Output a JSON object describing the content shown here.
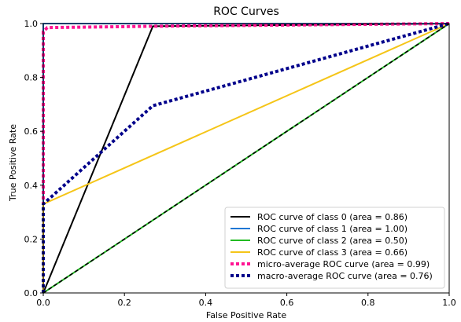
{
  "chart_data": {
    "type": "line",
    "title": "ROC Curves",
    "xlabel": "False Positive Rate",
    "ylabel": "True Positive Rate",
    "xlim": [
      0.0,
      1.0
    ],
    "ylim": [
      0.0,
      1.0
    ],
    "grid": false,
    "legend_position": "lower-right",
    "xticks": [
      "0.0",
      "0.2",
      "0.4",
      "0.6",
      "0.8",
      "1.0"
    ],
    "yticks": [
      "0.0",
      "0.2",
      "0.4",
      "0.6",
      "0.8",
      "1.0"
    ],
    "series": [
      {
        "name": "ROC curve of class 0 (area = 0.86)",
        "color": "#000000",
        "style": "solid",
        "x": [
          0.0,
          0.27,
          1.0
        ],
        "y": [
          0.0,
          0.99,
          1.0
        ]
      },
      {
        "name": "ROC curve of class 1 (area = 1.00)",
        "color": "#1f77d4",
        "style": "solid",
        "x": [
          0.0,
          0.0,
          1.0
        ],
        "y": [
          0.0,
          1.0,
          1.0
        ]
      },
      {
        "name": "ROC curve of class 2 (area = 0.50)",
        "color": "#22bb22",
        "style": "solid",
        "x": [
          0.0,
          1.0
        ],
        "y": [
          0.0,
          1.0
        ]
      },
      {
        "name": "ROC curve of class 3 (area = 0.66)",
        "color": "#f5c518",
        "style": "solid",
        "x": [
          0.0,
          0.0,
          1.0
        ],
        "y": [
          0.0,
          0.33,
          1.0
        ]
      },
      {
        "name": "micro-average ROC curve (area = 0.99)",
        "color": "#ff1493",
        "style": "dotted",
        "x": [
          0.0,
          0.0,
          0.01,
          0.27,
          1.0
        ],
        "y": [
          0.0,
          0.97,
          0.985,
          0.99,
          1.0
        ]
      },
      {
        "name": "macro-average ROC curve (area = 0.76)",
        "color": "#00008b",
        "style": "dotted",
        "x": [
          0.0,
          0.0,
          0.27,
          1.0
        ],
        "y": [
          0.0,
          0.33,
          0.695,
          1.0
        ]
      }
    ],
    "reference_line": {
      "color": "#000000",
      "style": "dashed",
      "x": [
        0.0,
        1.0
      ],
      "y": [
        0.0,
        1.0
      ]
    }
  }
}
